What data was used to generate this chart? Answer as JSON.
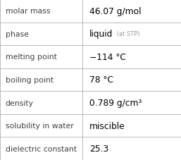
{
  "rows": [
    {
      "label": "molar mass",
      "value": "46.07 g/mol",
      "type": "plain"
    },
    {
      "label": "phase",
      "value": "liquid",
      "suffix": " (at STP)",
      "type": "suffix"
    },
    {
      "label": "melting point",
      "value": "−114 °C",
      "type": "plain"
    },
    {
      "label": "boiling point",
      "value": "78 °C",
      "type": "plain"
    },
    {
      "label": "density",
      "value": "0.789 g/cm³",
      "type": "plain"
    },
    {
      "label": "solubility in water",
      "value": "miscible",
      "type": "plain"
    },
    {
      "label": "dielectric constant",
      "value": "25.3",
      "type": "plain"
    }
  ],
  "bg_color": "#ffffff",
  "border_color": "#b0b0b0",
  "label_color": "#404040",
  "value_color": "#000000",
  "suffix_color": "#999999",
  "label_fontsize": 7.8,
  "value_fontsize": 8.8,
  "suffix_fontsize": 6.0,
  "col_split": 0.455,
  "fig_width": 2.57,
  "fig_height": 2.28,
  "dpi": 100
}
